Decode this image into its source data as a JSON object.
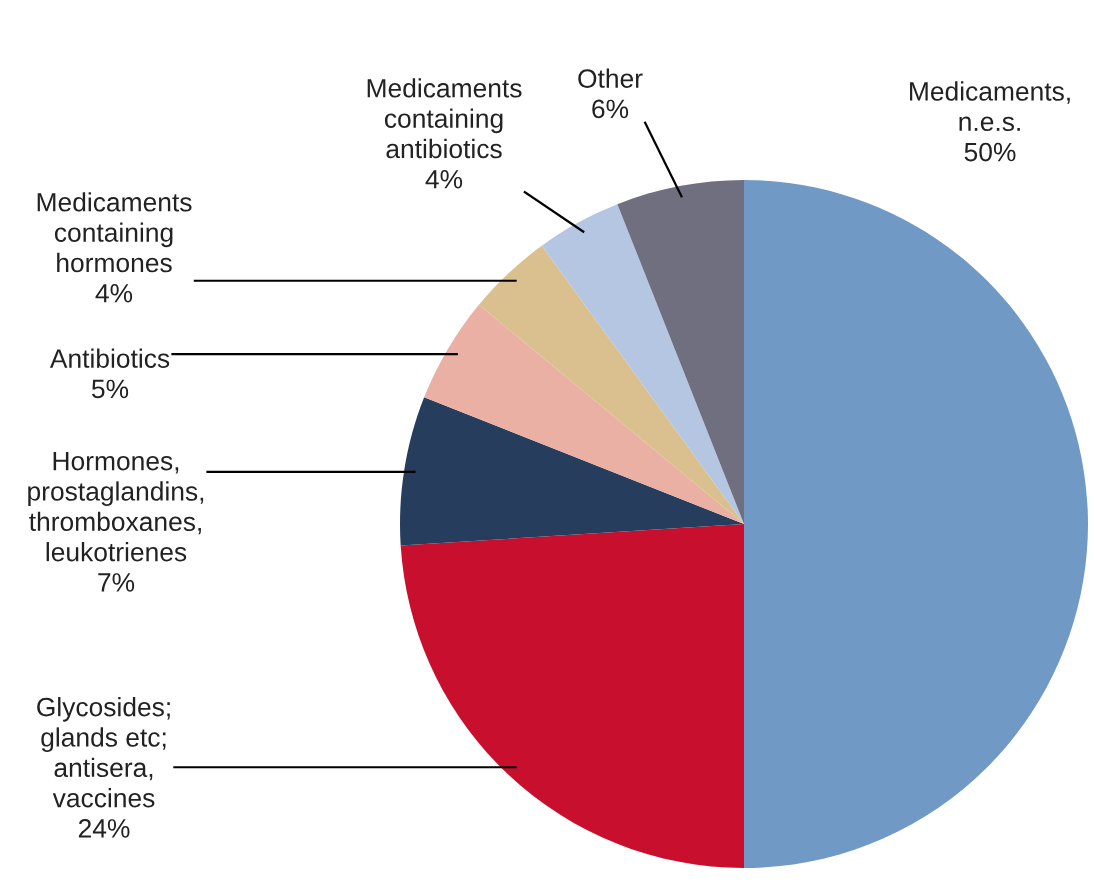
{
  "chart_data": {
    "type": "pie",
    "categories": [
      "Medicaments,\nn.e.s.",
      "Glycosides;\nglands etc;\nantisera,\nvaccines",
      "Hormones,\nprostaglandins,\nthromboxanes,\nleukotrienes",
      "Antibiotics",
      "Medicaments\ncontaining\nhormones",
      "Medicaments\ncontaining\nantibiotics",
      "Other"
    ],
    "values": [
      50,
      24,
      7,
      5,
      4,
      4,
      6
    ],
    "colors": [
      "#7099c6",
      "#c8102e",
      "#263d5e",
      "#e9b0a3",
      "#d9c08e",
      "#b5c6e3",
      "#6f6f80"
    ],
    "value_labels": [
      "50%",
      "24%",
      "7%",
      "5%",
      "4%",
      "4%",
      "6%"
    ],
    "legend": false
  }
}
